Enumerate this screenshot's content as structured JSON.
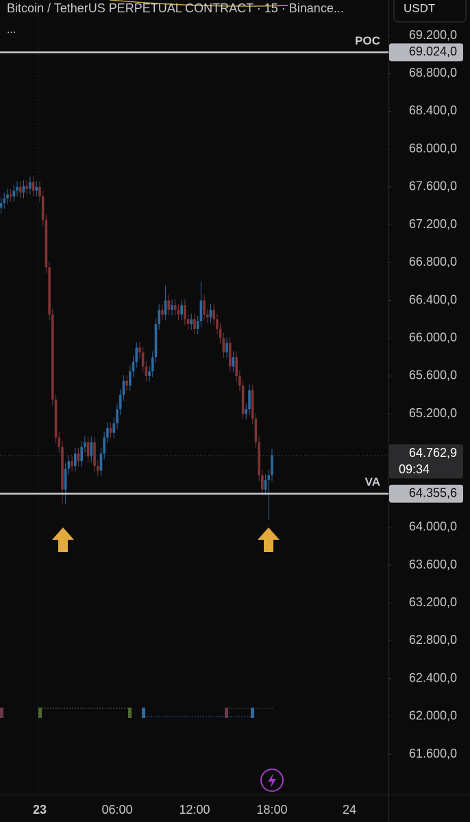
{
  "chart_data": {
    "type": "candlestick",
    "title": "Bitcoin / TetherUS PERPETUAL CONTRACT · 15 · Binance...",
    "subtitle": "...",
    "currency": "USDT",
    "up_color": "#2e6aa0",
    "down_color": "#7f3434",
    "categories": [
      null,
      null,
      null,
      null,
      null,
      null,
      null,
      null,
      null,
      null,
      null,
      null,
      "23",
      null,
      null,
      null,
      null,
      null,
      null,
      null,
      null,
      null,
      null,
      null,
      null,
      null,
      null,
      null,
      null,
      null,
      null,
      null,
      null,
      null,
      null,
      null,
      "06:00",
      null,
      null,
      null,
      null,
      null,
      null,
      null,
      null,
      null,
      null,
      null,
      null,
      null,
      null,
      null,
      null,
      null,
      null,
      null,
      null,
      null,
      null,
      null,
      "12:00",
      null,
      null,
      null,
      null,
      null,
      null,
      null,
      null,
      null,
      null,
      null,
      null,
      null,
      null,
      null,
      null,
      null,
      null,
      null,
      null,
      null,
      null,
      null,
      "18:00",
      null,
      null,
      null,
      null,
      null,
      null,
      null,
      null,
      null,
      null,
      null,
      null,
      null,
      null,
      null,
      null,
      null,
      null,
      null,
      null,
      null,
      null,
      null,
      "24"
    ],
    "open": [
      67380,
      67430,
      67480,
      67520,
      67500,
      67560,
      67600,
      67540,
      67610,
      67580,
      67650,
      67560,
      67600,
      67500,
      67250,
      66750,
      66250,
      65350,
      64950,
      64850,
      64400,
      64620,
      64700,
      64650,
      64780,
      64700,
      64850,
      64900,
      64750,
      64900,
      64650,
      64600,
      64780,
      64950,
      65050,
      65000,
      65100,
      65250,
      65400,
      65550,
      65500,
      65650,
      65750,
      65900,
      65850,
      65700,
      65600,
      65650,
      65800,
      66150,
      66300,
      66250,
      66400,
      66300,
      66350,
      66300,
      66250,
      66350,
      66200,
      66150,
      66200,
      66100,
      66180,
      66400,
      66250,
      66220,
      66300,
      66200,
      66100,
      66000,
      65850,
      65950,
      65700,
      65800,
      65600,
      65500,
      65200,
      65250,
      65450,
      65150,
      64900,
      64550,
      64400,
      64500,
      64550,
      null,
      null,
      null,
      null,
      null,
      null,
      null,
      null,
      null,
      null,
      null,
      null,
      null,
      null,
      null,
      null,
      null,
      null,
      null,
      null,
      null,
      null,
      null,
      null
    ],
    "high": [
      67490,
      67540,
      67580,
      67580,
      67620,
      67660,
      67660,
      67670,
      67670,
      67710,
      67710,
      67660,
      67660,
      67560,
      67310,
      66810,
      66310,
      65410,
      65010,
      64910,
      64680,
      64760,
      64760,
      64840,
      64840,
      64910,
      64960,
      64960,
      64960,
      64960,
      64710,
      64840,
      65010,
      65110,
      65110,
      65160,
      65310,
      65460,
      65610,
      65610,
      65710,
      65810,
      65960,
      65960,
      65910,
      65760,
      65710,
      65860,
      66210,
      66360,
      66360,
      66560,
      66460,
      66410,
      66410,
      66360,
      66410,
      66410,
      66260,
      66260,
      66260,
      66240,
      66600,
      66460,
      66310,
      66360,
      66360,
      66260,
      66160,
      66060,
      66010,
      66010,
      65860,
      65860,
      65660,
      65560,
      65310,
      65510,
      65510,
      65210,
      64960,
      64610,
      64560,
      64610,
      64830,
      null,
      null,
      null,
      null,
      null,
      null,
      null,
      null,
      null,
      null,
      null,
      null,
      null,
      null,
      null,
      null,
      null,
      null,
      null,
      null,
      null,
      null,
      null,
      null
    ],
    "low": [
      67320,
      67370,
      67420,
      67440,
      67440,
      67500,
      67480,
      67480,
      67520,
      67520,
      67500,
      67500,
      67440,
      67190,
      66690,
      66190,
      65290,
      64890,
      64790,
      64240,
      64250,
      64560,
      64590,
      64590,
      64640,
      64640,
      64790,
      64690,
      64690,
      64590,
      64540,
      64540,
      64720,
      64890,
      64940,
      64940,
      65040,
      65190,
      65340,
      65440,
      65440,
      65590,
      65690,
      65790,
      65640,
      65540,
      65540,
      65590,
      65740,
      66090,
      66190,
      66190,
      66240,
      66240,
      66240,
      66190,
      66190,
      66140,
      66090,
      66090,
      66040,
      66040,
      66120,
      66190,
      66160,
      66160,
      66140,
      66040,
      65940,
      65790,
      65790,
      65640,
      65640,
      65540,
      65440,
      65140,
      65140,
      65190,
      65090,
      64840,
      64490,
      64340,
      64340,
      64080,
      64490,
      null,
      null,
      null,
      null,
      null,
      null,
      null,
      null,
      null,
      null,
      null,
      null,
      null,
      null,
      null,
      null,
      null,
      null,
      null,
      null,
      null,
      null,
      null,
      null
    ],
    "close": [
      67430,
      67480,
      67520,
      67500,
      67560,
      67600,
      67540,
      67610,
      67580,
      67650,
      67560,
      67600,
      67500,
      67250,
      66750,
      66250,
      65350,
      64950,
      64850,
      64400,
      64620,
      64700,
      64650,
      64780,
      64700,
      64850,
      64900,
      64750,
      64900,
      64650,
      64600,
      64780,
      64950,
      65050,
      65000,
      65100,
      65250,
      65400,
      65550,
      65500,
      65650,
      65750,
      65900,
      65850,
      65700,
      65600,
      65650,
      65800,
      66150,
      66300,
      66250,
      66400,
      66300,
      66350,
      66300,
      66250,
      66350,
      66200,
      66150,
      66200,
      66100,
      66180,
      66400,
      66250,
      66220,
      66300,
      66200,
      66100,
      66000,
      65850,
      65950,
      65700,
      65800,
      65600,
      65500,
      65200,
      65250,
      65450,
      65150,
      64900,
      64550,
      64400,
      64500,
      64550,
      64762.9,
      null,
      null,
      null,
      null,
      null,
      null,
      null,
      null,
      null,
      null,
      null,
      null,
      null,
      null,
      null,
      null,
      null,
      null,
      null,
      null,
      null,
      null,
      null,
      null
    ],
    "ylim": [
      61173,
      69577
    ],
    "yticks": [
      {
        "value": 69200,
        "label": "69.200,0"
      },
      {
        "value": 68800,
        "label": "68.800,0"
      },
      {
        "value": 68400,
        "label": "68.400,0"
      },
      {
        "value": 68000,
        "label": "68.000,0"
      },
      {
        "value": 67600,
        "label": "67.600,0"
      },
      {
        "value": 67200,
        "label": "67.200,0"
      },
      {
        "value": 66800,
        "label": "66.800,0"
      },
      {
        "value": 66400,
        "label": "66.400,0"
      },
      {
        "value": 66000,
        "label": "66.000,0"
      },
      {
        "value": 65600,
        "label": "65.600,0"
      },
      {
        "value": 65200,
        "label": "65.200,0"
      },
      {
        "value": 64000,
        "label": "64.000,0"
      },
      {
        "value": 63600,
        "label": "63.600,0"
      },
      {
        "value": 63200,
        "label": "63.200,0"
      },
      {
        "value": 62800,
        "label": "62.800,0"
      },
      {
        "value": 62400,
        "label": "62.400,0"
      },
      {
        "value": 62000,
        "label": "62.000,0"
      },
      {
        "value": 61600,
        "label": "61.600,0"
      }
    ],
    "levels": [
      {
        "name": "POC",
        "value": 69024.0,
        "label": "69.024,0"
      },
      {
        "name": "VA",
        "value": 64355.6,
        "label": "64.355,6"
      }
    ],
    "last_price": {
      "value": 64762.9,
      "label": "64.762,9",
      "countdown": "09:34"
    }
  }
}
